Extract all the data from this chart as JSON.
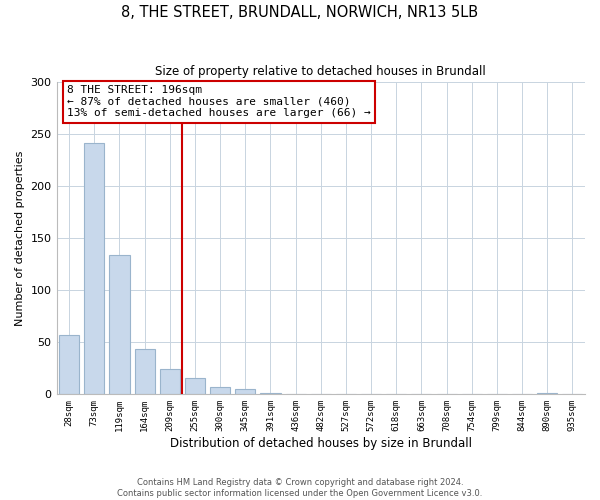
{
  "title": "8, THE STREET, BRUNDALL, NORWICH, NR13 5LB",
  "subtitle": "Size of property relative to detached houses in Brundall",
  "xlabel": "Distribution of detached houses by size in Brundall",
  "ylabel": "Number of detached properties",
  "footer_line1": "Contains HM Land Registry data © Crown copyright and database right 2024.",
  "footer_line2": "Contains public sector information licensed under the Open Government Licence v3.0.",
  "bin_labels": [
    "28sqm",
    "73sqm",
    "119sqm",
    "164sqm",
    "209sqm",
    "255sqm",
    "300sqm",
    "345sqm",
    "391sqm",
    "436sqm",
    "482sqm",
    "527sqm",
    "572sqm",
    "618sqm",
    "663sqm",
    "708sqm",
    "754sqm",
    "799sqm",
    "844sqm",
    "890sqm",
    "935sqm"
  ],
  "bar_values": [
    57,
    241,
    134,
    44,
    24,
    16,
    7,
    5,
    1,
    0,
    0,
    0,
    0,
    0,
    0,
    0,
    0,
    0,
    0,
    1,
    0
  ],
  "bar_color": "#c8d8eb",
  "bar_edge_color": "#9ab4cc",
  "vline_x_index": 4,
  "vline_color": "#cc0000",
  "annotation_title": "8 THE STREET: 196sqm",
  "annotation_line2": "← 87% of detached houses are smaller (460)",
  "annotation_line3": "13% of semi-detached houses are larger (66) →",
  "annotation_box_color": "#ffffff",
  "annotation_box_edge_color": "#cc0000",
  "ylim": [
    0,
    300
  ],
  "yticks": [
    0,
    50,
    100,
    150,
    200,
    250,
    300
  ],
  "background_color": "#ffffff",
  "grid_color": "#c8d4e0"
}
